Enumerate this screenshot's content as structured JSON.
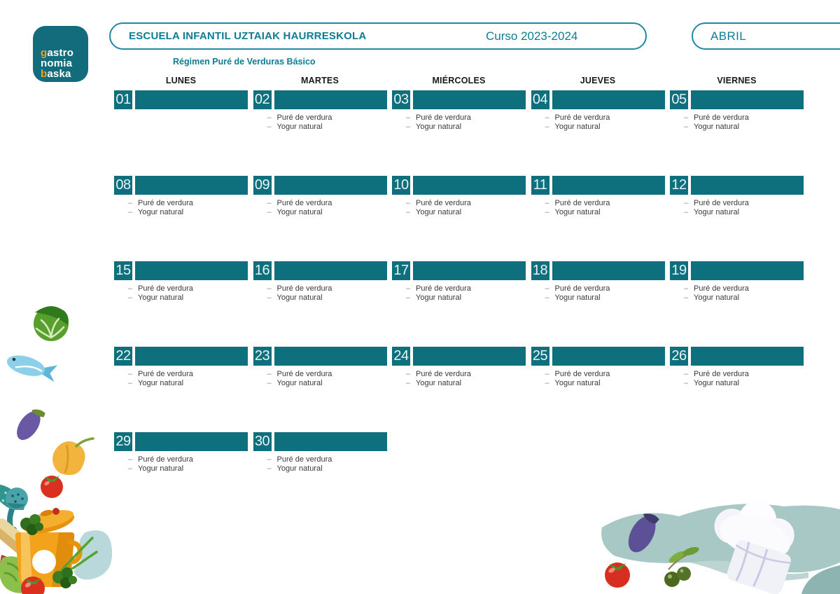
{
  "logo": {
    "line1_accent": "g",
    "line1_rest": "astro",
    "line2_accent": "",
    "line2_rest": "nomia",
    "line3_accent": "b",
    "line3_rest": "aska"
  },
  "header": {
    "school_name": "ESCUELA INFANTIL UZTAIAK HAURRESKOLA",
    "course": "Curso 2023-2024",
    "month": "ABRIL",
    "regimen": "Régimen Puré de Verduras Básico"
  },
  "calendar": {
    "weekday_headers": [
      "LUNES",
      "MARTES",
      "MIÉRCOLES",
      "JUEVES",
      "VIERNES"
    ],
    "weeks": [
      [
        {
          "day": "01",
          "items": []
        },
        {
          "day": "02",
          "items": [
            "Puré de verdura",
            "Yogur natural"
          ]
        },
        {
          "day": "03",
          "items": [
            "Puré de verdura",
            "Yogur natural"
          ]
        },
        {
          "day": "04",
          "items": [
            "Puré de verdura",
            "Yogur natural"
          ]
        },
        {
          "day": "05",
          "items": [
            "Puré de verdura",
            "Yogur natural"
          ]
        }
      ],
      [
        {
          "day": "08",
          "items": [
            "Puré de verdura",
            "Yogur natural"
          ]
        },
        {
          "day": "09",
          "items": [
            "Puré de verdura",
            "Yogur natural"
          ]
        },
        {
          "day": "10",
          "items": [
            "Puré de verdura",
            "Yogur natural"
          ]
        },
        {
          "day": "11",
          "items": [
            "Puré de verdura",
            "Yogur natural"
          ]
        },
        {
          "day": "12",
          "items": [
            "Puré de verdura",
            "Yogur natural"
          ]
        }
      ],
      [
        {
          "day": "15",
          "items": [
            "Puré de verdura",
            "Yogur natural"
          ]
        },
        {
          "day": "16",
          "items": [
            "Puré de verdura",
            "Yogur natural"
          ]
        },
        {
          "day": "17",
          "items": [
            "Puré de verdura",
            "Yogur natural"
          ]
        },
        {
          "day": "18",
          "items": [
            "Puré de verdura",
            "Yogur natural"
          ]
        },
        {
          "day": "19",
          "items": [
            "Puré de verdura",
            "Yogur natural"
          ]
        }
      ],
      [
        {
          "day": "22",
          "items": [
            "Puré de verdura",
            "Yogur natural"
          ]
        },
        {
          "day": "23",
          "items": [
            "Puré de verdura",
            "Yogur natural"
          ]
        },
        {
          "day": "24",
          "items": [
            "Puré de verdura",
            "Yogur natural"
          ]
        },
        {
          "day": "25",
          "items": [
            "Puré de verdura",
            "Yogur natural"
          ]
        },
        {
          "day": "26",
          "items": [
            "Puré de verdura",
            "Yogur natural"
          ]
        }
      ],
      [
        {
          "day": "29",
          "items": [
            "Puré de verdura",
            "Yogur natural"
          ]
        },
        {
          "day": "30",
          "items": [
            "Puré de verdura",
            "Yogur natural"
          ]
        }
      ]
    ]
  },
  "colors": {
    "teal": "#0e6f7d",
    "teal_border": "#2089a3",
    "teal_text": "#0d7d94",
    "logo_teal": "#136c7c",
    "logo_accent": "#f2a01e",
    "menu_text": "#3a3a3a"
  }
}
